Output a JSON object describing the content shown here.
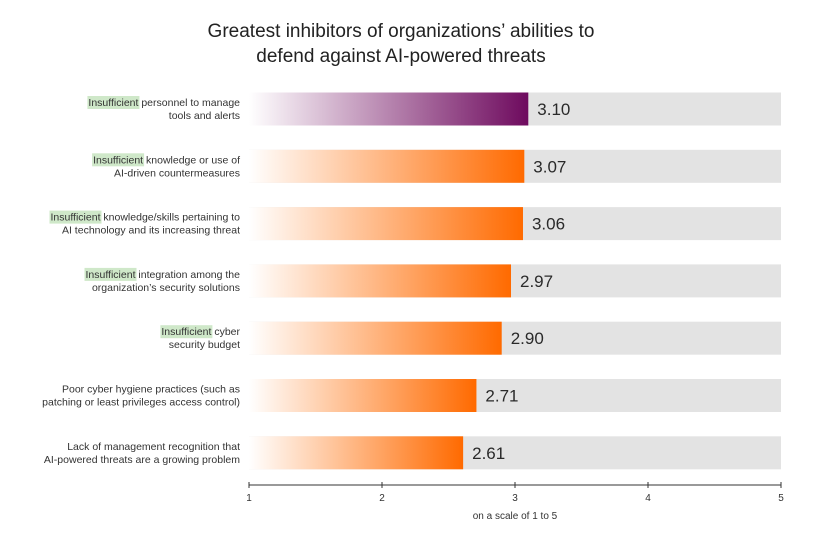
{
  "chart_data": {
    "type": "bar",
    "orientation": "horizontal",
    "title": [
      "Greatest inhibitors of organizations’ abilities to",
      "defend against AI-powered threats"
    ],
    "categories": [
      {
        "highlight": "Insufficient",
        "lines": [
          " personnel to manage",
          "tools and alerts"
        ]
      },
      {
        "highlight": "Insufficient",
        "lines": [
          " knowledge or use of",
          "AI-driven countermeasures"
        ]
      },
      {
        "highlight": "Insufficient",
        "lines": [
          " knowledge/skills pertaining to",
          "AI technology and its increasing threat"
        ]
      },
      {
        "highlight": "Insufficient",
        "lines": [
          " integration among the",
          "organization’s security solutions"
        ]
      },
      {
        "highlight": "Insufficient",
        "lines": [
          " cyber",
          "security budget"
        ]
      },
      {
        "highlight": "",
        "lines": [
          "Poor cyber hygiene practices (such as",
          "patching or least privileges access control)"
        ]
      },
      {
        "highlight": "",
        "lines": [
          "Lack of management recognition that",
          "AI-powered threats are a growing problem"
        ]
      }
    ],
    "values": [
      3.1,
      3.07,
      3.06,
      2.97,
      2.9,
      2.71,
      2.61
    ],
    "value_labels": [
      "3.10",
      "3.07",
      "3.06",
      "2.97",
      "2.90",
      "2.71",
      "2.61"
    ],
    "xlim": [
      1,
      5
    ],
    "xticks": [
      1,
      2,
      3,
      4,
      5
    ],
    "xlabel": "on a scale of 1 to 5",
    "grid": false,
    "colors": {
      "track": "#e3e3e3",
      "top_bar_start": "#ffffff",
      "top_bar_end": "#6e0a5e",
      "bar_start": "#ffffff",
      "bar_end": "#ff6a00",
      "highlight_bg": "#cfe8c9",
      "axis": "#333333"
    }
  }
}
